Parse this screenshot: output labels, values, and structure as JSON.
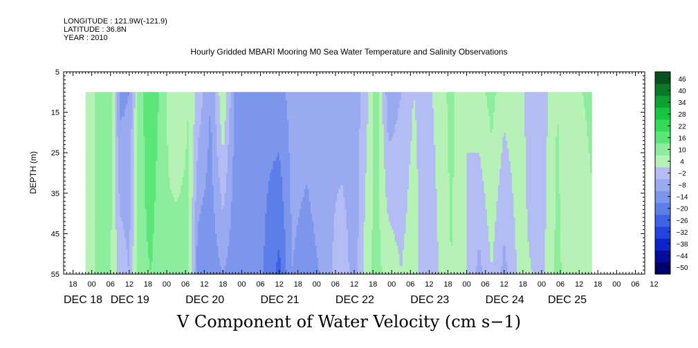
{
  "header": {
    "longitude": "LONGITUDE : 121.9W(-121.9)",
    "latitude": "LATITUDE : 36.8N",
    "year": "YEAR : 2010",
    "title": "Hourly Gridded MBARI Mooring M0 Sea Water Temperature and Salinity Observations"
  },
  "chart_data": {
    "type": "heatmap",
    "title": "Hourly Gridded MBARI Mooring M0 Sea Water Temperature and Salinity Observations",
    "xlabel": "",
    "ylabel": "DEPTH (m)",
    "bottom_title": "V Component of Water Velocity (cm s−1)",
    "xlim_hours": [
      -9,
      177
    ],
    "ylim": [
      5,
      55
    ],
    "y_ticks": [
      5,
      15,
      25,
      35,
      45,
      55
    ],
    "y_tick_labels": [
      "5",
      "15",
      "25",
      "35",
      "45",
      "55"
    ],
    "hour_ticks": [
      {
        "h": -6,
        "label": "18"
      },
      {
        "h": 0,
        "label": "00"
      },
      {
        "h": 6,
        "label": "06"
      },
      {
        "h": 12,
        "label": "12"
      },
      {
        "h": 18,
        "label": "18"
      },
      {
        "h": 24,
        "label": "00"
      },
      {
        "h": 30,
        "label": "06"
      },
      {
        "h": 36,
        "label": "12"
      },
      {
        "h": 42,
        "label": "18"
      },
      {
        "h": 48,
        "label": "00"
      },
      {
        "h": 54,
        "label": "06"
      },
      {
        "h": 60,
        "label": "12"
      },
      {
        "h": 66,
        "label": "18"
      },
      {
        "h": 72,
        "label": "00"
      },
      {
        "h": 78,
        "label": "06"
      },
      {
        "h": 84,
        "label": "12"
      },
      {
        "h": 90,
        "label": "18"
      },
      {
        "h": 96,
        "label": "00"
      },
      {
        "h": 102,
        "label": "06"
      },
      {
        "h": 108,
        "label": "12"
      },
      {
        "h": 114,
        "label": "18"
      },
      {
        "h": 120,
        "label": "00"
      },
      {
        "h": 126,
        "label": "06"
      },
      {
        "h": 132,
        "label": "12"
      },
      {
        "h": 138,
        "label": "18"
      },
      {
        "h": 144,
        "label": "00"
      },
      {
        "h": 150,
        "label": "06"
      },
      {
        "h": 156,
        "label": "12"
      },
      {
        "h": 162,
        "label": "18"
      },
      {
        "h": 168,
        "label": "00"
      },
      {
        "h": 174,
        "label": "06"
      },
      {
        "h": 180,
        "label": "12"
      }
    ],
    "day_labels": [
      {
        "h": -9,
        "label": "DEC 18"
      },
      {
        "h": 6,
        "label": "DEC 19"
      },
      {
        "h": 30,
        "label": "DEC 20"
      },
      {
        "h": 54,
        "label": "DEC 21"
      },
      {
        "h": 78,
        "label": "DEC 22"
      },
      {
        "h": 102,
        "label": "DEC 23"
      },
      {
        "h": 126,
        "label": "DEC 24"
      },
      {
        "h": 146,
        "label": "DEC 25"
      }
    ],
    "data_depth_range": [
      10,
      55
    ],
    "data_time_range_hours": [
      -2,
      160
    ],
    "colorbar": {
      "levels": [
        -50,
        -44,
        -38,
        -32,
        -26,
        -20,
        -14,
        -8,
        -2,
        4,
        10,
        16,
        22,
        28,
        34,
        40,
        46
      ],
      "labels": [
        "46",
        "40",
        "34",
        "28",
        "22",
        "16",
        "10",
        "4",
        "−2",
        "−8",
        "−14",
        "−20",
        "−26",
        "−32",
        "−38",
        "−44",
        "−50"
      ],
      "colors": [
        "#00006a",
        "#000c9a",
        "#0a24c6",
        "#2244de",
        "#3c62e6",
        "#5c7ee8",
        "#7c96ec",
        "#9aaaf0",
        "#b4bcf4",
        "#b6f2b6",
        "#8cee9c",
        "#5ce67a",
        "#30dc5a",
        "#14c640",
        "#0aa232",
        "#087a28",
        "#06521e"
      ]
    },
    "column_profile": [
      {
        "t": -2,
        "top": 6,
        "bottom": 4
      },
      {
        "t": 2,
        "top": 11,
        "bottom": 12
      },
      {
        "t": 6,
        "top": 14,
        "bottom": 10
      },
      {
        "t": 9,
        "top": -10,
        "bottom": 2
      },
      {
        "t": 12,
        "top": -8,
        "bottom": -2
      },
      {
        "t": 15,
        "top": 12,
        "bottom": 14
      },
      {
        "t": 19,
        "top": 22,
        "bottom": 16
      },
      {
        "t": 23,
        "top": 12,
        "bottom": 10
      },
      {
        "t": 27,
        "top": 4,
        "bottom": 14
      },
      {
        "t": 31,
        "top": 10,
        "bottom": 12
      },
      {
        "t": 34,
        "top": 2,
        "bottom": -12
      },
      {
        "t": 38,
        "top": -8,
        "bottom": -12
      },
      {
        "t": 42,
        "top": 10,
        "bottom": -8
      },
      {
        "t": 46,
        "top": -10,
        "bottom": -12
      },
      {
        "t": 50,
        "top": -12,
        "bottom": -8
      },
      {
        "t": 55,
        "top": -12,
        "bottom": -14
      },
      {
        "t": 60,
        "top": -10,
        "bottom": -22
      },
      {
        "t": 64,
        "top": -6,
        "bottom": -8
      },
      {
        "t": 69,
        "top": -6,
        "bottom": -10
      },
      {
        "t": 73,
        "top": -4,
        "bottom": -8
      },
      {
        "t": 77,
        "top": -4,
        "bottom": -2
      },
      {
        "t": 80,
        "top": -8,
        "bottom": 4
      },
      {
        "t": 84,
        "top": -6,
        "bottom": -6
      },
      {
        "t": 88,
        "top": 2,
        "bottom": 8
      },
      {
        "t": 91,
        "top": 14,
        "bottom": 12
      },
      {
        "t": 95,
        "top": -6,
        "bottom": 8
      },
      {
        "t": 99,
        "top": -2,
        "bottom": 4
      },
      {
        "t": 103,
        "top": 4,
        "bottom": 8
      },
      {
        "t": 107,
        "top": 2,
        "bottom": -2
      },
      {
        "t": 111,
        "top": 6,
        "bottom": 4
      },
      {
        "t": 115,
        "top": 12,
        "bottom": 10
      },
      {
        "t": 120,
        "top": 4,
        "bottom": 4
      },
      {
        "t": 124,
        "top": 8,
        "bottom": -4
      },
      {
        "t": 128,
        "top": 12,
        "bottom": 4
      },
      {
        "t": 132,
        "top": 6,
        "bottom": -4
      },
      {
        "t": 137,
        "top": 8,
        "bottom": 6
      },
      {
        "t": 141,
        "top": -2,
        "bottom": 4
      },
      {
        "t": 145,
        "top": 2,
        "bottom": 4
      },
      {
        "t": 149,
        "top": 10,
        "bottom": 12
      },
      {
        "t": 153,
        "top": 4,
        "bottom": 6
      },
      {
        "t": 157,
        "top": 10,
        "bottom": 4
      },
      {
        "t": 160,
        "top": 12,
        "bottom": 8
      }
    ]
  }
}
